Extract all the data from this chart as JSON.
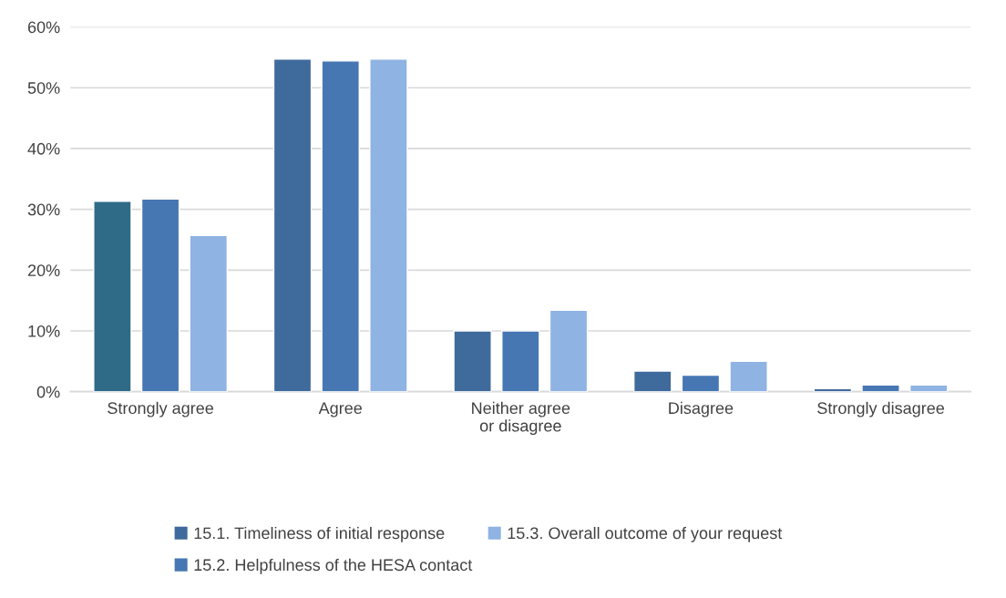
{
  "chart_data": {
    "type": "bar",
    "categories": [
      "Strongly agree",
      "Agree",
      "Neither agree or disagree",
      "Disagree",
      "Strongly disagree"
    ],
    "series": [
      {
        "name": "15.1. Timeliness of initial response",
        "color": "#3f6a9c",
        "colors": [
          "#2f6a87",
          "#3f6a9c",
          "#3f6a9c",
          "#3f6a9c",
          "#3f6a9c"
        ],
        "values": [
          31.3,
          54.7,
          10.0,
          3.4,
          0.5
        ]
      },
      {
        "name": "15.2. Helpfulness of the HESA contact",
        "color": "#4677b3",
        "values": [
          31.7,
          54.4,
          10.0,
          2.7,
          1.1
        ]
      },
      {
        "name": "15.3. Overall outcome of your request",
        "color": "#8fb3e2",
        "values": [
          25.7,
          54.7,
          13.4,
          5.0,
          1.1
        ]
      }
    ],
    "ylim": [
      0,
      60
    ],
    "yticks": [
      {
        "value": 0,
        "label": "0%"
      },
      {
        "value": 10,
        "label": "10%"
      },
      {
        "value": 20,
        "label": "20%"
      },
      {
        "value": 30,
        "label": "30%"
      },
      {
        "value": 40,
        "label": "40%"
      },
      {
        "value": 50,
        "label": "50%"
      },
      {
        "value": 60,
        "label": "60%"
      }
    ],
    "grid": "y",
    "legend": "bottom"
  }
}
